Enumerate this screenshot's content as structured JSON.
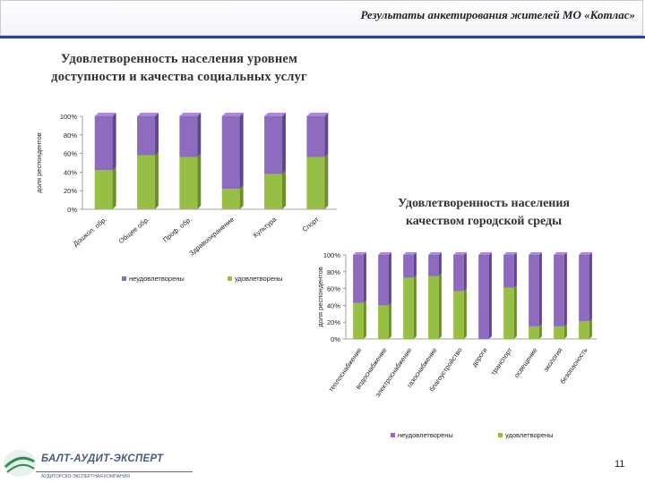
{
  "header": {
    "title": "Результаты анкетирования жителей МО «Котлас»"
  },
  "chart1_title_lines": [
    "Удовлетворенность населения уровнем",
    "доступности и качества социальных услуг"
  ],
  "chart2_title_lines": [
    "Удовлетворенность населения",
    "качеством  городской среды"
  ],
  "footer": {
    "logo": "БАЛТ-АУДИТ-ЭКСПЕРТ",
    "logo_sub": "АУДИТОРСКО-ЭКСПЕРТНАЯ КОМПАНИЯ",
    "page": "11"
  },
  "colors": {
    "dissatisfied": "#8e6bbf",
    "satisfied": "#97bf45"
  },
  "chart_data": [
    {
      "type": "bar",
      "stacked": true,
      "title": "Удовлетворенность населения уровнем доступности и качества социальных услуг",
      "ylabel": "доля респондентов",
      "ylim": [
        0,
        100
      ],
      "yticks": [
        "0%",
        "20%",
        "40%",
        "60%",
        "80%",
        "100%"
      ],
      "categories": [
        "Дошкол. обр.",
        "Общее обр.",
        "Проф. обр.",
        "Здравоохранение",
        "Культура",
        "Спорт"
      ],
      "series": [
        {
          "name": "удовлетворены",
          "values": [
            42,
            58,
            56,
            22,
            38,
            56
          ]
        },
        {
          "name": "неудовлетворены",
          "values": [
            58,
            42,
            44,
            78,
            62,
            44
          ]
        }
      ],
      "legend": {
        "placement": "bottom",
        "entries": [
          "неудовлетворены",
          "удовлетворены"
        ]
      },
      "grid": false
    },
    {
      "type": "bar",
      "stacked": true,
      "title": "Удовлетворенность населения качеством городской среды",
      "ylabel": "доля респондентов",
      "ylim": [
        0,
        100
      ],
      "yticks": [
        "0%",
        "20%",
        "40%",
        "60%",
        "80%",
        "100%"
      ],
      "categories": [
        "теплоснабжение",
        "водоснабжение",
        "электроснабжение",
        "газоснабжение",
        "благоустройство",
        "дороги",
        "транспорт",
        "освещение",
        "экология",
        "безопасность"
      ],
      "series": [
        {
          "name": "удовлетворены",
          "values": [
            43,
            40,
            73,
            75,
            57,
            0,
            61,
            15,
            15,
            21
          ]
        },
        {
          "name": "неудовлетворены",
          "values": [
            57,
            60,
            27,
            25,
            43,
            100,
            39,
            85,
            85,
            79
          ]
        }
      ],
      "legend": {
        "placement": "bottom",
        "entries": [
          "неудовлетворены",
          "удовлетворены"
        ]
      },
      "grid": false
    }
  ]
}
